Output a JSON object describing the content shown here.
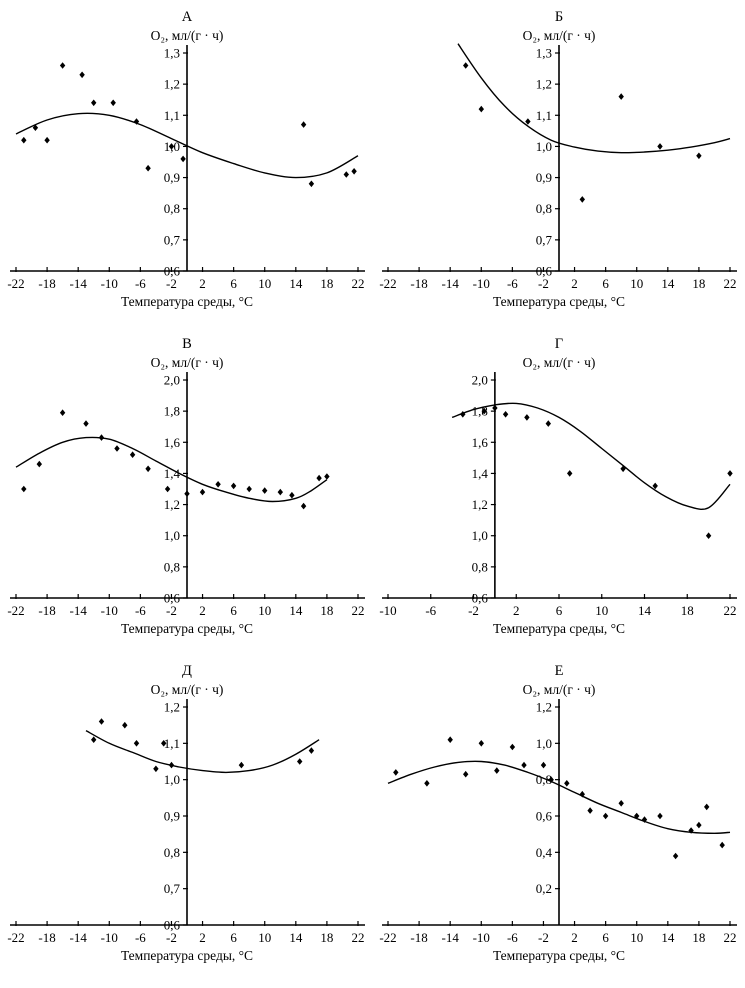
{
  "figure": {
    "background": "#ffffff",
    "ink": "#000000"
  },
  "chart_data": [
    {
      "type": "scatter",
      "panel_label": "А",
      "ylabel": "О₂, мл/(г · ч)",
      "xlabel": "Температура среды, °С",
      "xlim": [
        -22,
        22
      ],
      "ylim": [
        0.6,
        1.3
      ],
      "xticks": [
        -22,
        -18,
        -14,
        -10,
        -6,
        -2,
        2,
        6,
        10,
        14,
        18,
        22
      ],
      "xtick_labels": [
        "-22",
        "-18",
        "-14",
        "-10",
        "-6",
        "-2",
        "2",
        "6",
        "10",
        "14",
        "18",
        "22"
      ],
      "yticks": [
        0.6,
        0.7,
        0.8,
        0.9,
        1.0,
        1.1,
        1.2,
        1.3
      ],
      "ytick_labels": [
        "0,6",
        "0,7",
        "0,8",
        "0,9",
        "1,0",
        "1,1",
        "1,2",
        "1,3"
      ],
      "points": [
        [
          -21,
          1.02
        ],
        [
          -19.5,
          1.06
        ],
        [
          -18,
          1.02
        ],
        [
          -16,
          1.26
        ],
        [
          -13.5,
          1.23
        ],
        [
          -12,
          1.14
        ],
        [
          -9.5,
          1.14
        ],
        [
          -6.5,
          1.08
        ],
        [
          -5,
          0.93
        ],
        [
          -2,
          1.0
        ],
        [
          -0.5,
          0.96
        ],
        [
          15,
          1.07
        ],
        [
          16,
          0.88
        ],
        [
          20.5,
          0.91
        ],
        [
          21.5,
          0.92
        ]
      ],
      "trend_curve": [
        [
          -22,
          1.04
        ],
        [
          -18,
          1.085
        ],
        [
          -14,
          1.105
        ],
        [
          -10,
          1.1
        ],
        [
          -6,
          1.07
        ],
        [
          -2,
          1.025
        ],
        [
          2,
          0.98
        ],
        [
          6,
          0.945
        ],
        [
          10,
          0.915
        ],
        [
          14,
          0.9
        ],
        [
          18,
          0.915
        ],
        [
          22,
          0.97
        ]
      ]
    },
    {
      "type": "scatter",
      "panel_label": "Б",
      "ylabel": "О₂, мл/(г · ч)",
      "xlabel": "Температура среды, °С",
      "xlim": [
        -22,
        22
      ],
      "ylim": [
        0.6,
        1.3
      ],
      "xticks": [
        -22,
        -18,
        -14,
        -10,
        -6,
        -2,
        2,
        6,
        10,
        14,
        18,
        22
      ],
      "xtick_labels": [
        "-22",
        "-18",
        "-14",
        "-10",
        "-6",
        "-2",
        "2",
        "6",
        "10",
        "14",
        "18",
        "22"
      ],
      "yticks": [
        0.6,
        0.7,
        0.8,
        0.9,
        1.0,
        1.1,
        1.2,
        1.3
      ],
      "ytick_labels": [
        "0,6",
        "0,7",
        "0,8",
        "0,9",
        "1,0",
        "1,1",
        "1,2",
        "1,3"
      ],
      "points": [
        [
          -12,
          1.26
        ],
        [
          -10,
          1.12
        ],
        [
          -4,
          1.08
        ],
        [
          3,
          0.83
        ],
        [
          8,
          1.16
        ],
        [
          13,
          1.0
        ],
        [
          18,
          0.97
        ]
      ],
      "trend_curve": [
        [
          -13,
          1.33
        ],
        [
          -10,
          1.22
        ],
        [
          -7,
          1.13
        ],
        [
          -4,
          1.065
        ],
        [
          -1,
          1.02
        ],
        [
          2,
          0.998
        ],
        [
          5,
          0.985
        ],
        [
          8,
          0.98
        ],
        [
          11,
          0.982
        ],
        [
          14,
          0.988
        ],
        [
          17,
          0.998
        ],
        [
          20,
          1.012
        ],
        [
          22,
          1.025
        ]
      ]
    },
    {
      "type": "scatter",
      "panel_label": "В",
      "ylabel": "О₂, мл/(г · ч)",
      "xlabel": "Температура среды, °С",
      "xlim": [
        -22,
        22
      ],
      "ylim": [
        0.6,
        2.0
      ],
      "xticks": [
        -22,
        -18,
        -14,
        -10,
        -6,
        -2,
        2,
        6,
        10,
        14,
        18,
        22
      ],
      "xtick_labels": [
        "-22",
        "-18",
        "-14",
        "-10",
        "-6",
        "-2",
        "2",
        "6",
        "10",
        "14",
        "18",
        "22"
      ],
      "yticks": [
        0.6,
        0.8,
        1.0,
        1.2,
        1.4,
        1.6,
        1.8,
        2.0
      ],
      "ytick_labels": [
        "0,6",
        "0,8",
        "1,0",
        "1,2",
        "1,4",
        "1,6",
        "1,8",
        "2,0"
      ],
      "points": [
        [
          -21,
          1.3
        ],
        [
          -19,
          1.46
        ],
        [
          -16,
          1.79
        ],
        [
          -13,
          1.72
        ],
        [
          -11,
          1.63
        ],
        [
          -9,
          1.56
        ],
        [
          -7,
          1.52
        ],
        [
          -5,
          1.43
        ],
        [
          -2.5,
          1.3
        ],
        [
          0,
          1.27
        ],
        [
          2,
          1.28
        ],
        [
          4,
          1.33
        ],
        [
          6,
          1.32
        ],
        [
          8,
          1.3
        ],
        [
          10,
          1.29
        ],
        [
          12,
          1.28
        ],
        [
          13.5,
          1.26
        ],
        [
          15,
          1.19
        ],
        [
          17,
          1.37
        ],
        [
          18,
          1.38
        ]
      ],
      "trend_curve": [
        [
          -22,
          1.44
        ],
        [
          -19,
          1.53
        ],
        [
          -16,
          1.6
        ],
        [
          -13,
          1.63
        ],
        [
          -10,
          1.62
        ],
        [
          -7,
          1.56
        ],
        [
          -4,
          1.48
        ],
        [
          -1,
          1.4
        ],
        [
          2,
          1.33
        ],
        [
          5,
          1.28
        ],
        [
          8,
          1.24
        ],
        [
          11,
          1.22
        ],
        [
          14,
          1.24
        ],
        [
          16,
          1.29
        ],
        [
          18,
          1.36
        ]
      ]
    },
    {
      "type": "scatter",
      "panel_label": "Г",
      "ylabel": "О₂, мл/(г · ч)",
      "xlabel": "Температура среды, °С",
      "xlim": [
        -10,
        22
      ],
      "ylim": [
        0.6,
        2.0
      ],
      "xticks": [
        -10,
        -6,
        -2,
        2,
        6,
        10,
        14,
        18,
        22
      ],
      "xtick_labels": [
        "-10",
        "-6",
        "-2",
        "2",
        "6",
        "10",
        "14",
        "18",
        "22"
      ],
      "yticks": [
        0.6,
        0.8,
        1.0,
        1.2,
        1.4,
        1.6,
        1.8,
        2.0
      ],
      "ytick_labels": [
        "0,6",
        "0,8",
        "1,0",
        "1,2",
        "1,4",
        "1,6",
        "1,8",
        "2,0"
      ],
      "points": [
        [
          -3,
          1.78
        ],
        [
          -1,
          1.8
        ],
        [
          0,
          1.82
        ],
        [
          1,
          1.78
        ],
        [
          3,
          1.76
        ],
        [
          5,
          1.72
        ],
        [
          7,
          1.4
        ],
        [
          12,
          1.43
        ],
        [
          15,
          1.32
        ],
        [
          20,
          1.0
        ],
        [
          22,
          1.4
        ]
      ],
      "trend_curve": [
        [
          -4,
          1.76
        ],
        [
          -2,
          1.81
        ],
        [
          0,
          1.84
        ],
        [
          2,
          1.85
        ],
        [
          4,
          1.82
        ],
        [
          6,
          1.76
        ],
        [
          8,
          1.67
        ],
        [
          10,
          1.56
        ],
        [
          12,
          1.45
        ],
        [
          14,
          1.34
        ],
        [
          16,
          1.25
        ],
        [
          18,
          1.19
        ],
        [
          20,
          1.18
        ],
        [
          22,
          1.33
        ]
      ]
    },
    {
      "type": "scatter",
      "panel_label": "Д",
      "ylabel": "О₂, мл/(г · ч)",
      "xlabel": "Температура среды, °С",
      "xlim": [
        -22,
        22
      ],
      "ylim": [
        0.6,
        1.2
      ],
      "xticks": [
        -22,
        -18,
        -14,
        -10,
        -6,
        -2,
        2,
        6,
        10,
        14,
        18,
        22
      ],
      "xtick_labels": [
        "-22",
        "-18",
        "-14",
        "-10",
        "-6",
        "-2",
        "2",
        "6",
        "10",
        "14",
        "18",
        "22"
      ],
      "yticks": [
        0.6,
        0.7,
        0.8,
        0.9,
        1.0,
        1.1,
        1.2
      ],
      "ytick_labels": [
        "0,6",
        "0,7",
        "0,8",
        "0,9",
        "1,0",
        "1,1",
        "1,2"
      ],
      "points": [
        [
          -12,
          1.11
        ],
        [
          -11,
          1.16
        ],
        [
          -8,
          1.15
        ],
        [
          -6.5,
          1.1
        ],
        [
          -4,
          1.03
        ],
        [
          -3,
          1.1
        ],
        [
          -2,
          1.04
        ],
        [
          7,
          1.04
        ],
        [
          14.5,
          1.05
        ],
        [
          16,
          1.08
        ]
      ],
      "trend_curve": [
        [
          -13,
          1.135
        ],
        [
          -10,
          1.1
        ],
        [
          -7,
          1.075
        ],
        [
          -4,
          1.05
        ],
        [
          -1,
          1.035
        ],
        [
          2,
          1.025
        ],
        [
          5,
          1.02
        ],
        [
          8,
          1.025
        ],
        [
          11,
          1.04
        ],
        [
          14,
          1.07
        ],
        [
          17,
          1.11
        ]
      ]
    },
    {
      "type": "scatter",
      "panel_label": "Е",
      "ylabel": "О₂, мл/(г · ч)",
      "xlabel": "Температура среды, °С",
      "xlim": [
        -22,
        22
      ],
      "ylim": [
        0,
        1.2
      ],
      "xticks": [
        -22,
        -18,
        -14,
        -10,
        -6,
        -2,
        2,
        6,
        10,
        14,
        18,
        22
      ],
      "xtick_labels": [
        "-22",
        "-18",
        "-14",
        "-10",
        "-6",
        "-2",
        "2",
        "6",
        "10",
        "14",
        "18",
        "22"
      ],
      "yticks": [
        0.2,
        0.4,
        0.6,
        0.8,
        1.0,
        1.2
      ],
      "ytick_labels": [
        "0,2",
        "0,4",
        "0,6",
        "0,8",
        "1,0",
        "1,2"
      ],
      "points": [
        [
          -21,
          0.84
        ],
        [
          -17,
          0.78
        ],
        [
          -14,
          1.02
        ],
        [
          -12,
          0.83
        ],
        [
          -10,
          1.0
        ],
        [
          -8,
          0.85
        ],
        [
          -6,
          0.98
        ],
        [
          -4.5,
          0.88
        ],
        [
          -2,
          0.88
        ],
        [
          -1,
          0.8
        ],
        [
          1,
          0.78
        ],
        [
          3,
          0.72
        ],
        [
          4,
          0.63
        ],
        [
          6,
          0.6
        ],
        [
          8,
          0.67
        ],
        [
          10,
          0.6
        ],
        [
          11,
          0.58
        ],
        [
          13,
          0.6
        ],
        [
          15,
          0.38
        ],
        [
          17,
          0.52
        ],
        [
          18,
          0.55
        ],
        [
          19,
          0.65
        ],
        [
          21,
          0.44
        ]
      ],
      "trend_curve": [
        [
          -22,
          0.78
        ],
        [
          -19,
          0.83
        ],
        [
          -16,
          0.87
        ],
        [
          -13,
          0.895
        ],
        [
          -10,
          0.9
        ],
        [
          -7,
          0.88
        ],
        [
          -4,
          0.84
        ],
        [
          -1,
          0.79
        ],
        [
          2,
          0.73
        ],
        [
          5,
          0.67
        ],
        [
          8,
          0.62
        ],
        [
          11,
          0.57
        ],
        [
          14,
          0.53
        ],
        [
          17,
          0.51
        ],
        [
          20,
          0.505
        ],
        [
          22,
          0.51
        ]
      ]
    }
  ]
}
